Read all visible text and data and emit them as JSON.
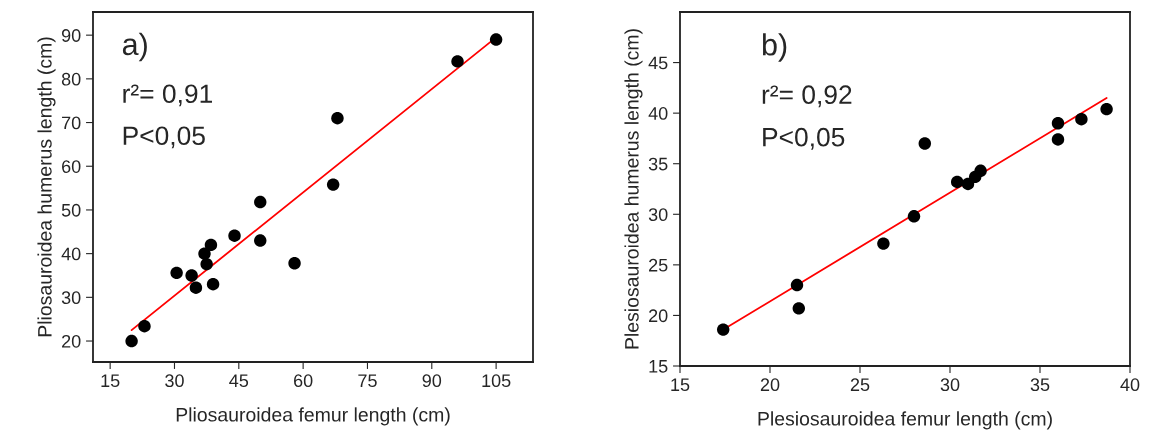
{
  "chart_data": [
    {
      "type": "scatter",
      "xlabel": "Pliosauroidea femur length (cm)",
      "ylabel": "Pliosauroidea humerus length (cm)",
      "annotations": [
        "a)",
        "r²= 0,91",
        "P<0,05"
      ],
      "xlim": [
        11,
        113.6
      ],
      "ylim": [
        15.2,
        95.3
      ],
      "xticks": [
        15,
        30,
        45,
        60,
        75,
        90,
        105
      ],
      "yticks": [
        20,
        30,
        40,
        50,
        60,
        70,
        80,
        90
      ],
      "grid": false,
      "legend": false,
      "series": [
        {
          "marker": "circle",
          "color": "#000000",
          "x": [
            20,
            23,
            30.5,
            34,
            35,
            37,
            37.5,
            38.5,
            39,
            44,
            50,
            50,
            58,
            67,
            68,
            96,
            105
          ],
          "values": [
            20,
            23.4,
            35.6,
            35,
            32.2,
            40,
            37.6,
            42,
            33,
            44.1,
            51.8,
            43,
            37.8,
            55.8,
            71,
            84,
            89
          ]
        },
        {
          "type": "line",
          "color": "#ff0000",
          "x": [
            20,
            105
          ],
          "values": [
            22.5,
            89.5
          ]
        }
      ]
    },
    {
      "type": "scatter",
      "xlabel": "Plesiosauroidea femur length (cm)",
      "ylabel": "Plesiosauroidea humerus length (cm)",
      "annotations": [
        "b)",
        "r²= 0,92",
        "P<0,05"
      ],
      "xlim": [
        15,
        40
      ],
      "ylim": [
        15,
        50
      ],
      "xticks": [
        15,
        20,
        25,
        30,
        35,
        40
      ],
      "yticks": [
        15,
        20,
        25,
        30,
        35,
        40,
        45
      ],
      "grid": false,
      "legend": false,
      "series": [
        {
          "marker": "circle",
          "color": "#000000",
          "x": [
            17.4,
            21.5,
            21.6,
            26.3,
            28,
            28.6,
            30.4,
            31,
            31.4,
            31.7,
            36,
            36,
            37.3,
            38.7
          ],
          "values": [
            18.6,
            23,
            20.7,
            27.1,
            29.8,
            37,
            33.2,
            33,
            33.7,
            34.3,
            39,
            37.4,
            39.4,
            40.4
          ]
        },
        {
          "type": "line",
          "color": "#ff0000",
          "x": [
            17.5,
            38.7
          ],
          "values": [
            18.7,
            41.5
          ]
        }
      ]
    }
  ]
}
